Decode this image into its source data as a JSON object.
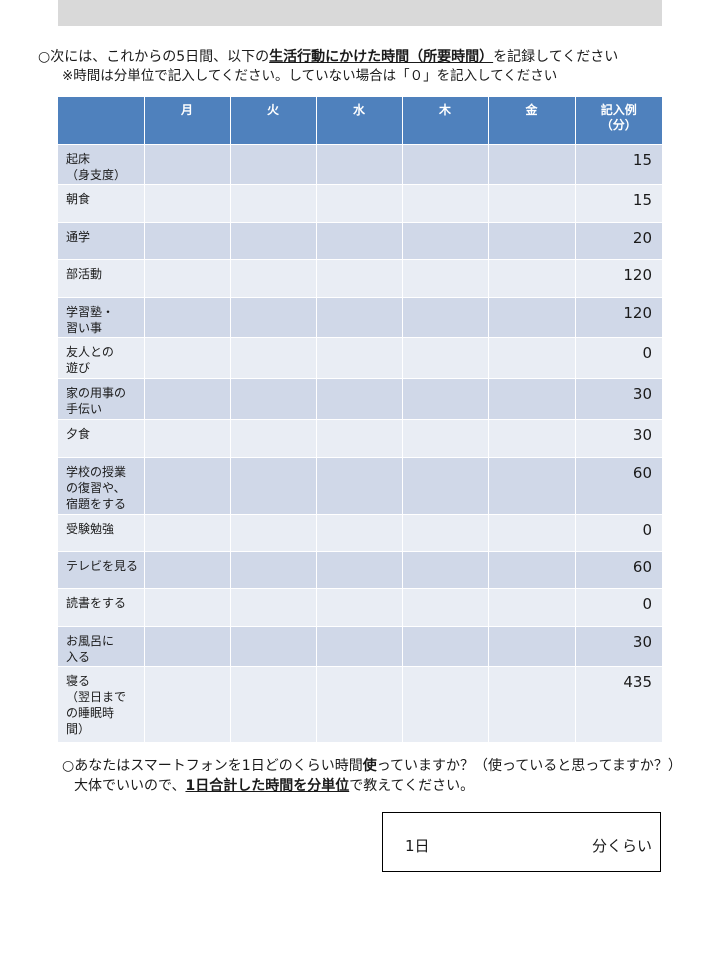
{
  "intro": {
    "line1_prefix": "○次には、これからの5日間、以下の",
    "line1_emph": "生活行動にかけた時間（所要時間）",
    "line1_suffix": "を記録してください",
    "line2": "※時間は分単位で記入してください。していない場合は「０」を記入してください"
  },
  "table": {
    "headers": [
      "",
      "月",
      "火",
      "水",
      "木",
      "金"
    ],
    "example_header_line1": "記入例",
    "example_header_line2": "（分）",
    "rows": [
      {
        "label_lines": [
          "起床",
          "（身支度）"
        ],
        "example": "15"
      },
      {
        "label_lines": [
          "朝食"
        ],
        "example": "15"
      },
      {
        "label_lines": [
          "通学"
        ],
        "example": "20"
      },
      {
        "label_lines": [
          "部活動"
        ],
        "example": "120"
      },
      {
        "label_lines": [
          "学習塾・",
          "習い事"
        ],
        "example": "120"
      },
      {
        "label_lines": [
          "友人との",
          "遊び"
        ],
        "example": "0"
      },
      {
        "label_lines": [
          "家の用事の",
          "手伝い"
        ],
        "example": "30"
      },
      {
        "label_lines": [
          "夕食"
        ],
        "example": "30"
      },
      {
        "label_lines": [
          "学校の授業",
          "の復習や、",
          "宿題をする"
        ],
        "example": "60"
      },
      {
        "label_lines": [
          "受験勉強"
        ],
        "example": "0"
      },
      {
        "label_lines": [
          "テレビを見る"
        ],
        "example": "60"
      },
      {
        "label_lines": [
          "読書をする"
        ],
        "example": "0"
      },
      {
        "label_lines": [
          "お風呂に",
          "入る"
        ],
        "example": "30"
      },
      {
        "label_lines": [
          "寝る",
          "（翌日まで",
          "の睡眠時",
          "間）"
        ],
        "example": "435"
      }
    ]
  },
  "question2": {
    "line1_a": "○あなたはスマートフォンを1日どのくらい時間",
    "line1_b": "使",
    "line1_c": "っていますか？（使っていると思ってますか？）",
    "line2_a": "大体でいいので、",
    "line2_emph": "1日合計した時間を分単位",
    "line2_c": "で教えてください。"
  },
  "answer_box": {
    "day_label": "1日",
    "unit_label": "分くらい"
  }
}
